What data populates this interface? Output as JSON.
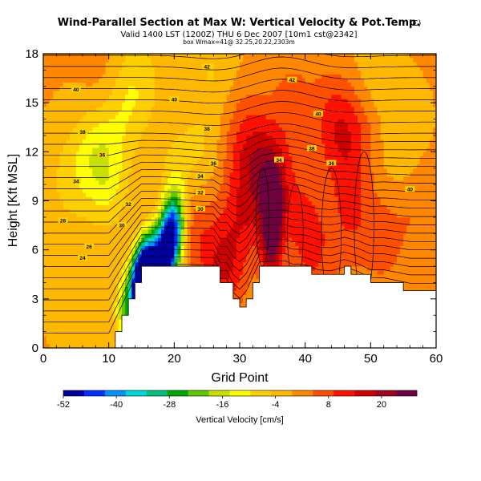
{
  "chart_data": {
    "type": "heatmap",
    "title": "Wind-Parallel Section at Max W: Vertical Velocity & Pot.Temp.",
    "title_mark": "(C)",
    "subtitle": "Valid 1400 LST (1200Z) THU 6 Dec 2007 [10m1 cst@2342]",
    "subtitle2": "box Wmax=41@ 32.25,20.22,2303m",
    "xlabel": "Grid Point",
    "ylabel": "Height [Kft MSL]",
    "xlim": [
      0,
      60
    ],
    "ylim": [
      0,
      18
    ],
    "x_ticks": [
      "0",
      "10",
      "20",
      "30",
      "40",
      "50",
      "60"
    ],
    "y_ticks": [
      "0",
      "3",
      "6",
      "9",
      "12",
      "15",
      "18"
    ],
    "colorbar": {
      "label": "Vertical Velocity [cm/s]",
      "range": [
        -52,
        28
      ],
      "ticks": [
        "-52",
        "-40",
        "-28",
        "-16",
        "-4",
        "8",
        "20"
      ],
      "colors": [
        "#0000a0",
        "#0030ff",
        "#0090ff",
        "#00d8d8",
        "#00c080",
        "#00a800",
        "#60c800",
        "#c8e000",
        "#ffff00",
        "#ffd000",
        "#ffb800",
        "#ff8800",
        "#ff5000",
        "#ff1000",
        "#d00000",
        "#a00020",
        "#700040"
      ]
    },
    "terrain": [
      [
        0,
        0
      ],
      [
        10,
        0
      ],
      [
        11,
        1
      ],
      [
        12,
        2
      ],
      [
        13,
        3
      ],
      [
        14,
        4
      ],
      [
        15,
        5
      ],
      [
        17,
        5
      ],
      [
        18,
        5
      ],
      [
        20,
        5
      ],
      [
        22,
        5
      ],
      [
        24,
        5
      ],
      [
        26,
        5
      ],
      [
        27,
        4
      ],
      [
        28,
        4
      ],
      [
        29,
        3
      ],
      [
        30,
        2.5
      ],
      [
        31,
        3
      ],
      [
        32,
        4
      ],
      [
        33,
        5
      ],
      [
        35,
        5
      ],
      [
        37,
        5
      ],
      [
        38,
        4.8
      ],
      [
        40,
        4.8
      ],
      [
        42,
        4.5
      ],
      [
        44,
        4.5
      ],
      [
        46,
        4.8
      ],
      [
        48,
        4.5
      ],
      [
        50,
        4
      ],
      [
        52,
        4
      ],
      [
        54,
        3.8
      ],
      [
        56,
        3.6
      ],
      [
        60,
        3.6
      ]
    ],
    "theta_contours": [
      {
        "label": "24",
        "label_at": [
          6,
          5.5
        ]
      },
      {
        "label": "26",
        "label_at": [
          7,
          6.2
        ]
      },
      {
        "label": "28",
        "label_at": [
          3,
          7.8
        ]
      },
      {
        "label": "30",
        "label_at": [
          12,
          7.5
        ],
        "label2": "30",
        "label2_at": [
          24,
          8.5
        ]
      },
      {
        "label": "32",
        "label_at": [
          13,
          8.8
        ],
        "label2": "32",
        "label2_at": [
          24,
          9.5
        ]
      },
      {
        "label": "34",
        "label_at": [
          5,
          10.2
        ],
        "label2": "34",
        "label2_at": [
          24,
          10.5
        ]
      },
      {
        "label": "36",
        "label_at": [
          9,
          11.8
        ],
        "label2": "36",
        "label2_at": [
          26,
          11.3
        ]
      },
      {
        "label": "38",
        "label_at": [
          6,
          13.2
        ],
        "label2": "38",
        "label2_at": [
          25,
          13.4
        ]
      },
      {
        "label": "40",
        "label_at": [
          5,
          15.8
        ],
        "label2": "40",
        "label2_at": [
          20,
          15.2
        ]
      },
      {
        "label": "42",
        "label_at": [
          25,
          17.2
        ],
        "label2": "42",
        "label2_at": [
          38,
          16.4
        ]
      },
      {
        "label": "38",
        "label_at": [
          41,
          12.2
        ]
      },
      {
        "label": "36",
        "label_at": [
          44,
          11.3
        ]
      },
      {
        "label": "34",
        "label_at": [
          36,
          11.5
        ]
      },
      {
        "label": "40",
        "label_at": [
          42,
          14.3
        ]
      },
      {
        "label": "40",
        "label_at": [
          56,
          9.7
        ]
      }
    ],
    "w_features": [
      {
        "x": 35,
        "y": 8.5,
        "w": 26
      },
      {
        "x": 34.8,
        "y": 6,
        "w": 16
      },
      {
        "x": 34.7,
        "y": 10.8,
        "w": 14
      },
      {
        "x": 27.5,
        "y": 5,
        "w": 14
      },
      {
        "x": 22.5,
        "y": 7.5,
        "w": 8
      },
      {
        "x": 30.8,
        "y": 8.5,
        "w": 10
      },
      {
        "x": 39.5,
        "y": 8,
        "w": 8
      },
      {
        "x": 41.5,
        "y": 5.3,
        "w": 7
      },
      {
        "x": 47,
        "y": 8,
        "w": 8
      },
      {
        "x": 52,
        "y": 6.5,
        "w": 6
      },
      {
        "x": 57,
        "y": 9,
        "w": 5
      },
      {
        "x": 44,
        "y": 14,
        "w": 8
      },
      {
        "x": 48,
        "y": 13.5,
        "w": 6
      },
      {
        "x": 32,
        "y": 12,
        "w": 6
      },
      {
        "x": 46,
        "y": 12,
        "w": 6
      },
      {
        "x": 38,
        "y": 15.5,
        "w": 5
      },
      {
        "x": 30,
        "y": 13,
        "w": 5
      },
      {
        "x": 17,
        "y": 7.3,
        "w": 4
      },
      {
        "x": 9.5,
        "y": 16,
        "w": 4
      },
      {
        "x": 5,
        "y": 8,
        "w": 2
      },
      {
        "x": 19.5,
        "y": 6.8,
        "w": -32
      },
      {
        "x": 18.8,
        "y": 5.8,
        "w": -30
      },
      {
        "x": 16.2,
        "y": 4.7,
        "w": -36
      },
      {
        "x": 15.3,
        "y": 3.8,
        "w": -48
      },
      {
        "x": 14.5,
        "y": 3.3,
        "w": -30
      },
      {
        "x": 17.3,
        "y": 5.5,
        "w": -20
      },
      {
        "x": 12.5,
        "y": 2.3,
        "w": -18
      },
      {
        "x": 20.5,
        "y": 7.8,
        "w": -20
      },
      {
        "x": 8,
        "y": 12,
        "w": -10
      },
      {
        "x": 12,
        "y": 14.8,
        "w": -8
      },
      {
        "x": 4,
        "y": 10,
        "w": -7
      },
      {
        "x": 10,
        "y": 10,
        "w": -8
      },
      {
        "x": 20,
        "y": 10.5,
        "w": -6
      },
      {
        "x": 15,
        "y": 16.5,
        "w": -6
      },
      {
        "x": 26,
        "y": 17,
        "w": -5
      },
      {
        "x": 5,
        "y": 4,
        "w": -5
      },
      {
        "x": 24,
        "y": 12,
        "w": -5
      },
      {
        "x": 50,
        "y": 16.5,
        "w": -4
      },
      {
        "x": 55,
        "y": 12,
        "w": -5
      }
    ]
  }
}
